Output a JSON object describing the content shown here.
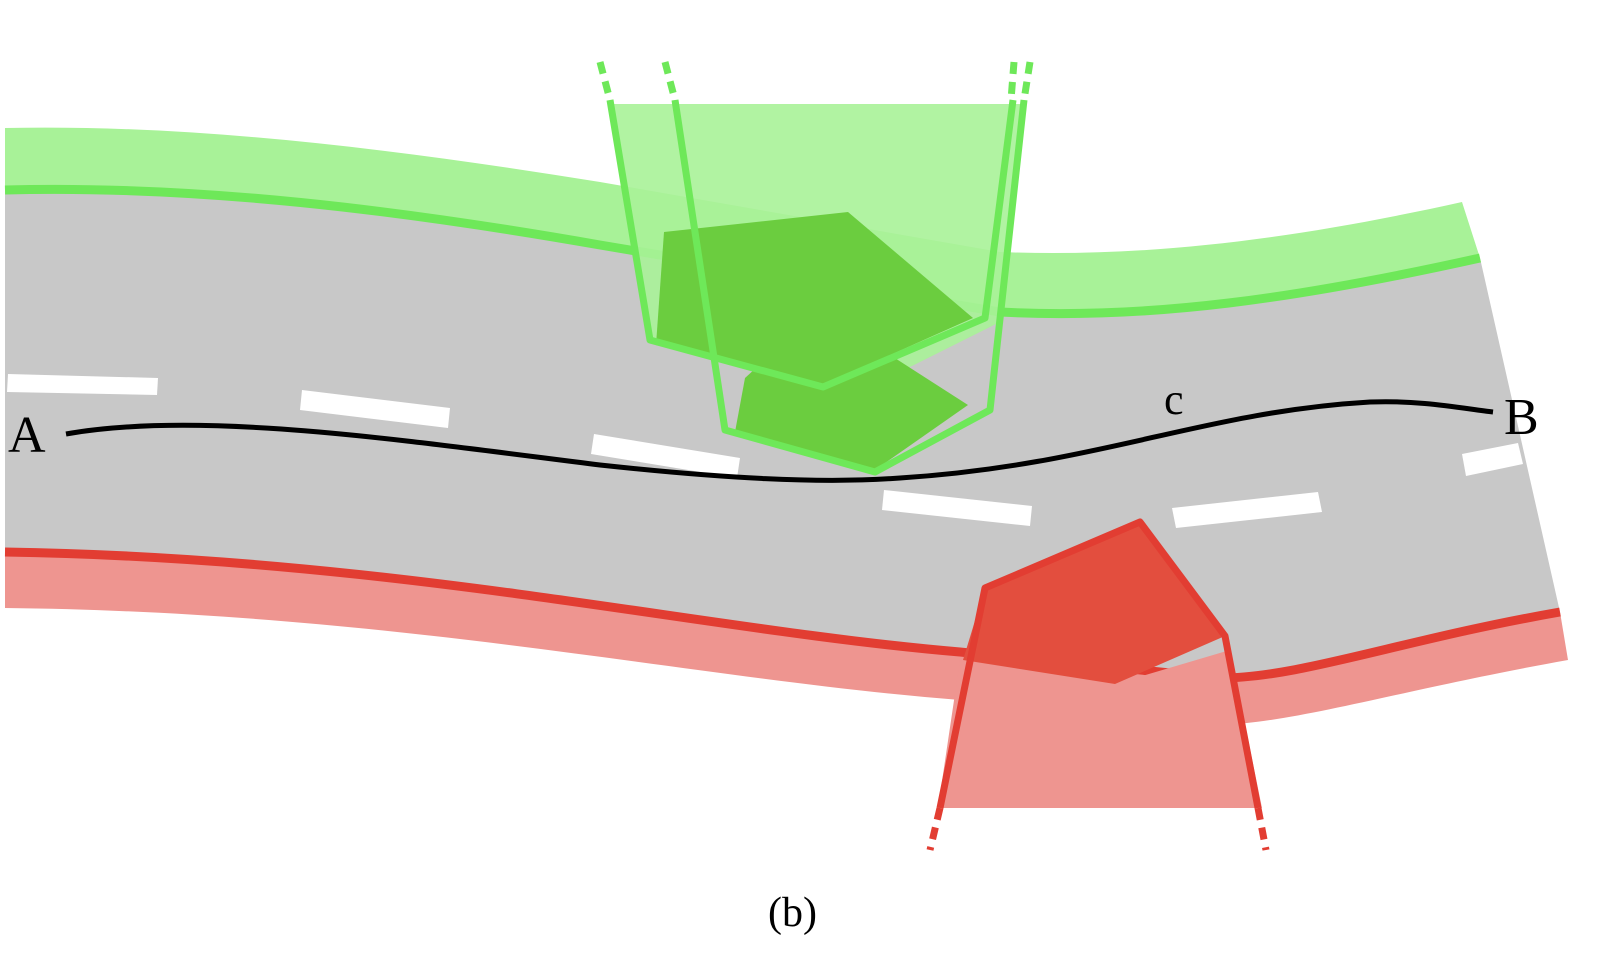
{
  "labels": {
    "start_point": "A",
    "end_point": "B",
    "path": "c",
    "caption": "(b)"
  },
  "colors": {
    "road": "#c8c8c8",
    "lane_marking": "#ffffff",
    "path": "#000000",
    "upper_boundary_light": "#a8f298",
    "upper_boundary_line": "#6ee859",
    "upper_obstacle_fill": "#6bcd3f",
    "upper_region_fill": "#a8f298",
    "lower_boundary_light": "#ee9590",
    "lower_boundary_line": "#e23d32",
    "lower_obstacle_fill": "#e34e3e",
    "lower_region_fill": "#ee9590"
  }
}
